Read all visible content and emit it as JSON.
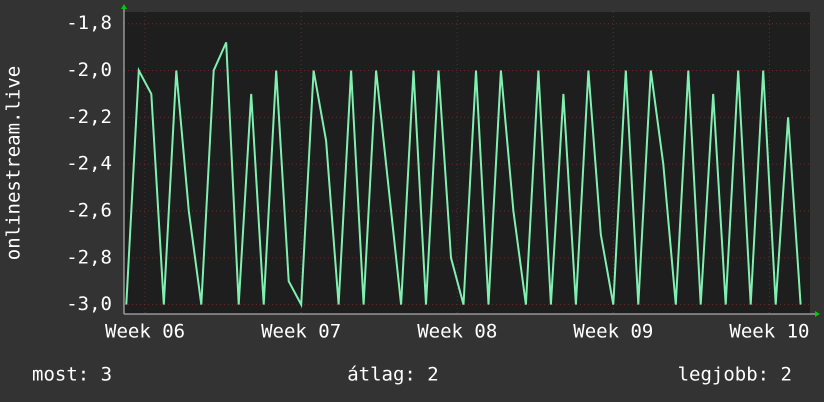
{
  "chart_data": {
    "type": "line",
    "y_label": "onlinestream.live",
    "x": [
      5.88,
      5.96,
      6.04,
      6.12,
      6.2,
      6.28,
      6.36,
      6.44,
      6.52,
      6.6,
      6.68,
      6.76,
      6.84,
      6.92,
      7.0,
      7.08,
      7.16,
      7.24,
      7.32,
      7.4,
      7.48,
      7.56,
      7.64,
      7.72,
      7.8,
      7.88,
      7.96,
      8.04,
      8.12,
      8.2,
      8.28,
      8.36,
      8.44,
      8.52,
      8.6,
      8.68,
      8.76,
      8.84,
      8.92,
      9.0,
      9.08,
      9.16,
      9.24,
      9.32,
      9.4,
      9.48,
      9.56,
      9.64,
      9.72,
      9.8,
      9.88,
      9.96,
      10.04,
      10.12,
      10.2
    ],
    "series": [
      {
        "color": "#80f0b0",
        "values": [
          -3,
          -2,
          -2.1,
          -3,
          -2,
          -2.6,
          -3,
          -2,
          -1.88,
          -3,
          -2.1,
          -3,
          -2,
          -2.9,
          -3,
          -2,
          -2.3,
          -3,
          -2,
          -3,
          -2,
          -2.5,
          -3,
          -2,
          -3,
          -2,
          -2.8,
          -3,
          -2,
          -3,
          -2,
          -2.6,
          -3,
          -2,
          -3,
          -2.1,
          -3,
          -2,
          -2.7,
          -3,
          -2,
          -3,
          -2,
          -2.4,
          -3,
          -2,
          -3,
          -2.1,
          -3,
          -2,
          -3,
          -2,
          -3,
          -2.2,
          -3
        ]
      }
    ],
    "xlim": [
      5.865,
      10.26
    ],
    "xticks": [
      {
        "value": 6,
        "label": "Week 06"
      },
      {
        "value": 7,
        "label": "Week 07"
      },
      {
        "value": 8,
        "label": "Week 08"
      },
      {
        "value": 9,
        "label": "Week 09"
      },
      {
        "value": 10,
        "label": "Week 10"
      }
    ],
    "ylim": [
      -3.04,
      -1.75
    ],
    "yticks": [
      {
        "value": -3.0,
        "label": "-3,0"
      },
      {
        "value": -2.8,
        "label": "-2,8"
      },
      {
        "value": -2.6,
        "label": "-2,6"
      },
      {
        "value": -2.4,
        "label": "-2,4"
      },
      {
        "value": -2.2,
        "label": "-2,2"
      },
      {
        "value": -2.0,
        "label": "-2,0"
      },
      {
        "value": -1.8,
        "label": "-1,8"
      }
    ],
    "grid": true,
    "footer": [
      "most: 3",
      "átlag: 2",
      "legjobb: 2"
    ]
  }
}
